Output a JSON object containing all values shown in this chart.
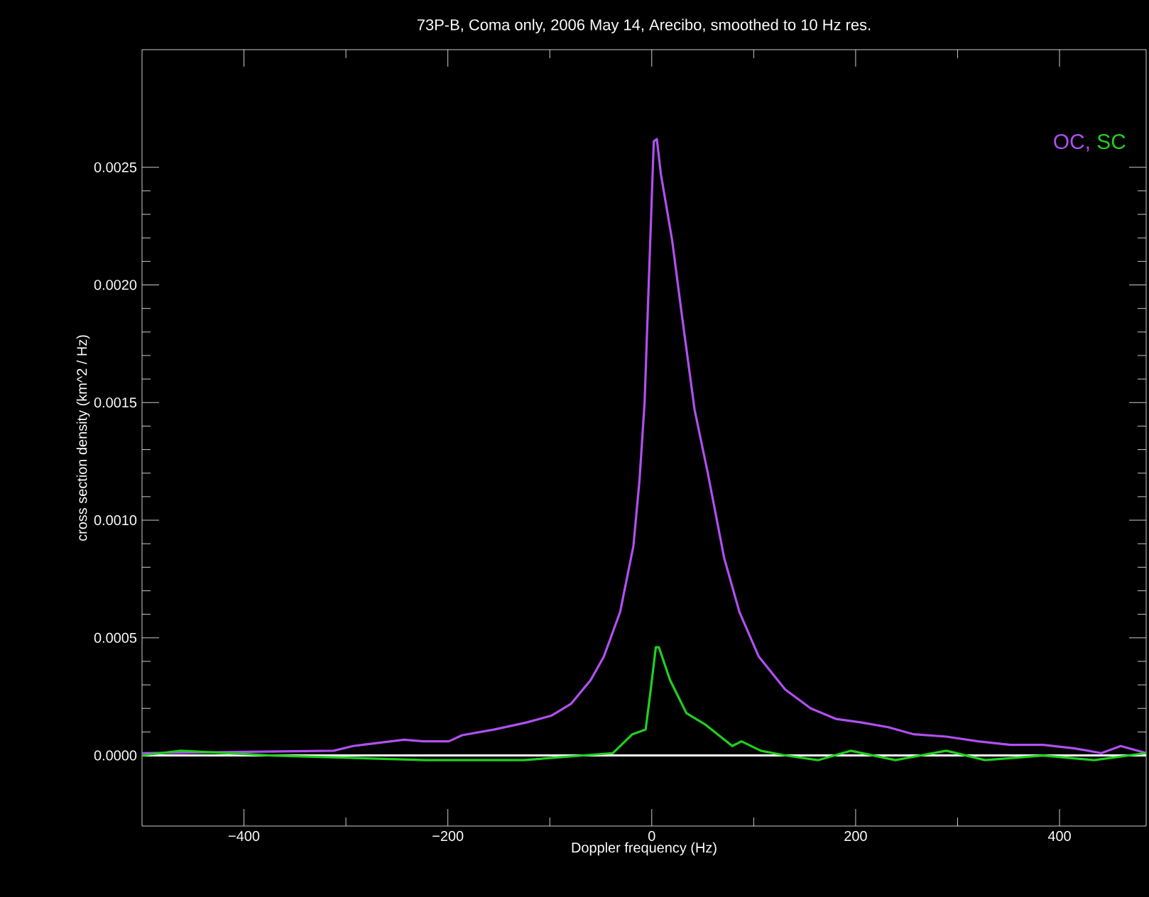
{
  "chart_data": {
    "type": "line",
    "title": "73P-B, Coma only, 2006 May 14, Arecibo, smoothed to 10 Hz res.",
    "xlabel": "Doppler frequency  (Hz)",
    "ylabel": "cross section density  (km^2 / Hz)",
    "xlim": [
      -500,
      485
    ],
    "ylim": [
      -0.0003,
      0.003
    ],
    "xticks": [
      {
        "value": -400,
        "label": "−400"
      },
      {
        "value": -200,
        "label": "−200"
      },
      0,
      200,
      400
    ],
    "yticks": [
      {
        "value": 0,
        "label": "0.0000"
      },
      {
        "value": 0.0005,
        "label": "0.0005"
      },
      {
        "value": 0.001,
        "label": "0.0010"
      },
      {
        "value": 0.0015,
        "label": "0.0015"
      },
      {
        "value": 0.002,
        "label": "0.0020"
      },
      {
        "value": 0.0025,
        "label": "0.0025"
      }
    ],
    "legend": "top right",
    "grid": false,
    "ref_lines": [
      {
        "axis": "y",
        "value": 0,
        "color": "#ffffff"
      }
    ],
    "series": [
      {
        "name": "OC,",
        "color": "#b050f0",
        "x": [
          -500,
          -312,
          -293,
          -243,
          -224,
          -199,
          -186,
          -155,
          -123,
          -98,
          -79,
          -60,
          -47,
          -31,
          -18,
          -12,
          -7,
          -3,
          2,
          5,
          9,
          20,
          29,
          42,
          55,
          71,
          86,
          105,
          131,
          156,
          181,
          206,
          232,
          257,
          289,
          320,
          352,
          384,
          415,
          441,
          460,
          485
        ],
        "values": [
          1e-05,
          2e-05,
          4e-05,
          6.7e-05,
          6e-05,
          6e-05,
          8.6e-05,
          0.00011,
          0.00014,
          0.00017,
          0.00022,
          0.00032,
          0.00042,
          0.00061,
          0.00089,
          0.00117,
          0.0015,
          0.002,
          0.00261,
          0.00262,
          0.00247,
          0.00219,
          0.00189,
          0.00147,
          0.0012,
          0.00084,
          0.00061,
          0.00042,
          0.00028,
          0.0002,
          0.000155,
          0.00014,
          0.00012,
          9e-05,
          8e-05,
          6e-05,
          4.5e-05,
          4.5e-05,
          3e-05,
          1e-05,
          4e-05,
          1e-05
        ]
      },
      {
        "name": "SC",
        "color": "#20d020",
        "x": [
          -500,
          -462,
          -373,
          -221,
          -126,
          -38,
          -19,
          -6,
          -1,
          4,
          7,
          18,
          34,
          53,
          79,
          88,
          107,
          131,
          163,
          195,
          239,
          289,
          327,
          384,
          434,
          485
        ],
        "values": [
          0,
          2e-05,
          0,
          -2e-05,
          -2e-05,
          1e-05,
          9e-05,
          0.00011,
          0.00028,
          0.00046,
          0.00046,
          0.00032,
          0.00018,
          0.00013,
          4e-05,
          6e-05,
          2e-05,
          0,
          -2e-05,
          2e-05,
          -2e-05,
          2e-05,
          -2e-05,
          0,
          -2e-05,
          1e-05
        ]
      }
    ]
  }
}
